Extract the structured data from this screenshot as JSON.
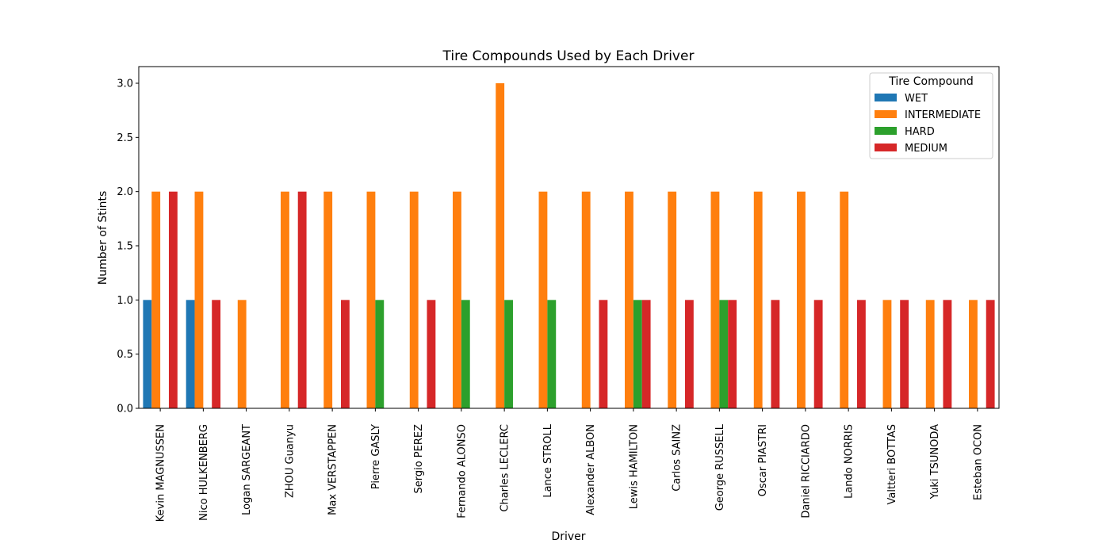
{
  "chart_data": {
    "type": "bar",
    "title": "Tire Compounds Used by Each Driver",
    "xlabel": "Driver",
    "ylabel": "Number of Stints",
    "ylim": [
      0,
      3.1
    ],
    "yticks": [
      "0.0",
      "0.5",
      "1.0",
      "1.5",
      "2.0",
      "2.5",
      "3.0"
    ],
    "grid": false,
    "legend": {
      "title": "Tire Compound",
      "placement": "top-right"
    },
    "categories": [
      "Kevin MAGNUSSEN",
      "Nico HULKENBERG",
      "Logan SARGEANT",
      "ZHOU Guanyu",
      "Max VERSTAPPEN",
      "Pierre GASLY",
      "Sergio PEREZ",
      "Fernando ALONSO",
      "Charles LECLERC",
      "Lance STROLL",
      "Alexander ALBON",
      "Lewis HAMILTON",
      "Carlos SAINZ",
      "George RUSSELL",
      "Oscar PIASTRI",
      "Daniel RICCIARDO",
      "Lando NORRIS",
      "Valtteri BOTTAS",
      "Yuki TSUNODA",
      "Esteban OCON"
    ],
    "series": [
      {
        "name": "WET",
        "color": "#1f77b4",
        "values": [
          1,
          1,
          0,
          0,
          0,
          0,
          0,
          0,
          0,
          0,
          0,
          0,
          0,
          0,
          0,
          0,
          0,
          0,
          0,
          0
        ]
      },
      {
        "name": "INTERMEDIATE",
        "color": "#ff7f0e",
        "values": [
          2,
          2,
          1,
          2,
          2,
          2,
          2,
          2,
          3,
          2,
          2,
          2,
          2,
          2,
          2,
          2,
          2,
          1,
          1,
          1
        ]
      },
      {
        "name": "HARD",
        "color": "#2ca02c",
        "values": [
          0,
          0,
          0,
          0,
          0,
          1,
          0,
          1,
          1,
          1,
          0,
          1,
          0,
          1,
          0,
          0,
          0,
          0,
          0,
          0
        ]
      },
      {
        "name": "MEDIUM",
        "color": "#d62728",
        "values": [
          2,
          1,
          0,
          2,
          1,
          0,
          1,
          0,
          0,
          0,
          1,
          1,
          1,
          1,
          1,
          1,
          1,
          1,
          1,
          1
        ]
      }
    ]
  }
}
